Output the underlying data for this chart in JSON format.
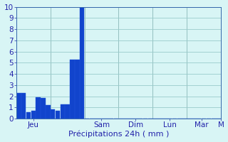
{
  "values": [
    2.3,
    2.3,
    0.6,
    0.7,
    1.9,
    1.85,
    1.2,
    0.8,
    0.7,
    1.3,
    1.3,
    5.3,
    5.3,
    10.0,
    0,
    0,
    0,
    0,
    0,
    0,
    0,
    0,
    0,
    0,
    0,
    0,
    0,
    0,
    0,
    0,
    0,
    0,
    0,
    0,
    0,
    0,
    0,
    0,
    0,
    0,
    0,
    0
  ],
  "n_bars": 42,
  "bar_color": "#1144cc",
  "bar_edge_color": "#2255dd",
  "background_color": "#d8f5f5",
  "grid_color": "#99cccc",
  "grid_color_major": "#8ab8b8",
  "axis_label": "Précipitations 24h ( mm )",
  "x_tick_labels": [
    "Jeu",
    "Sam",
    "Dim",
    "Lun",
    "Mar",
    "M"
  ],
  "day_divider_positions": [
    6.5,
    13.5,
    20.5,
    27.5,
    34.5,
    41.5
  ],
  "ylim": [
    0,
    10
  ],
  "yticks": [
    0,
    1,
    2,
    3,
    4,
    5,
    6,
    7,
    8,
    9,
    10
  ],
  "label_color": "#2222aa",
  "tick_color": "#2222aa",
  "font_size": 7.5,
  "spine_color": "#3366aa"
}
